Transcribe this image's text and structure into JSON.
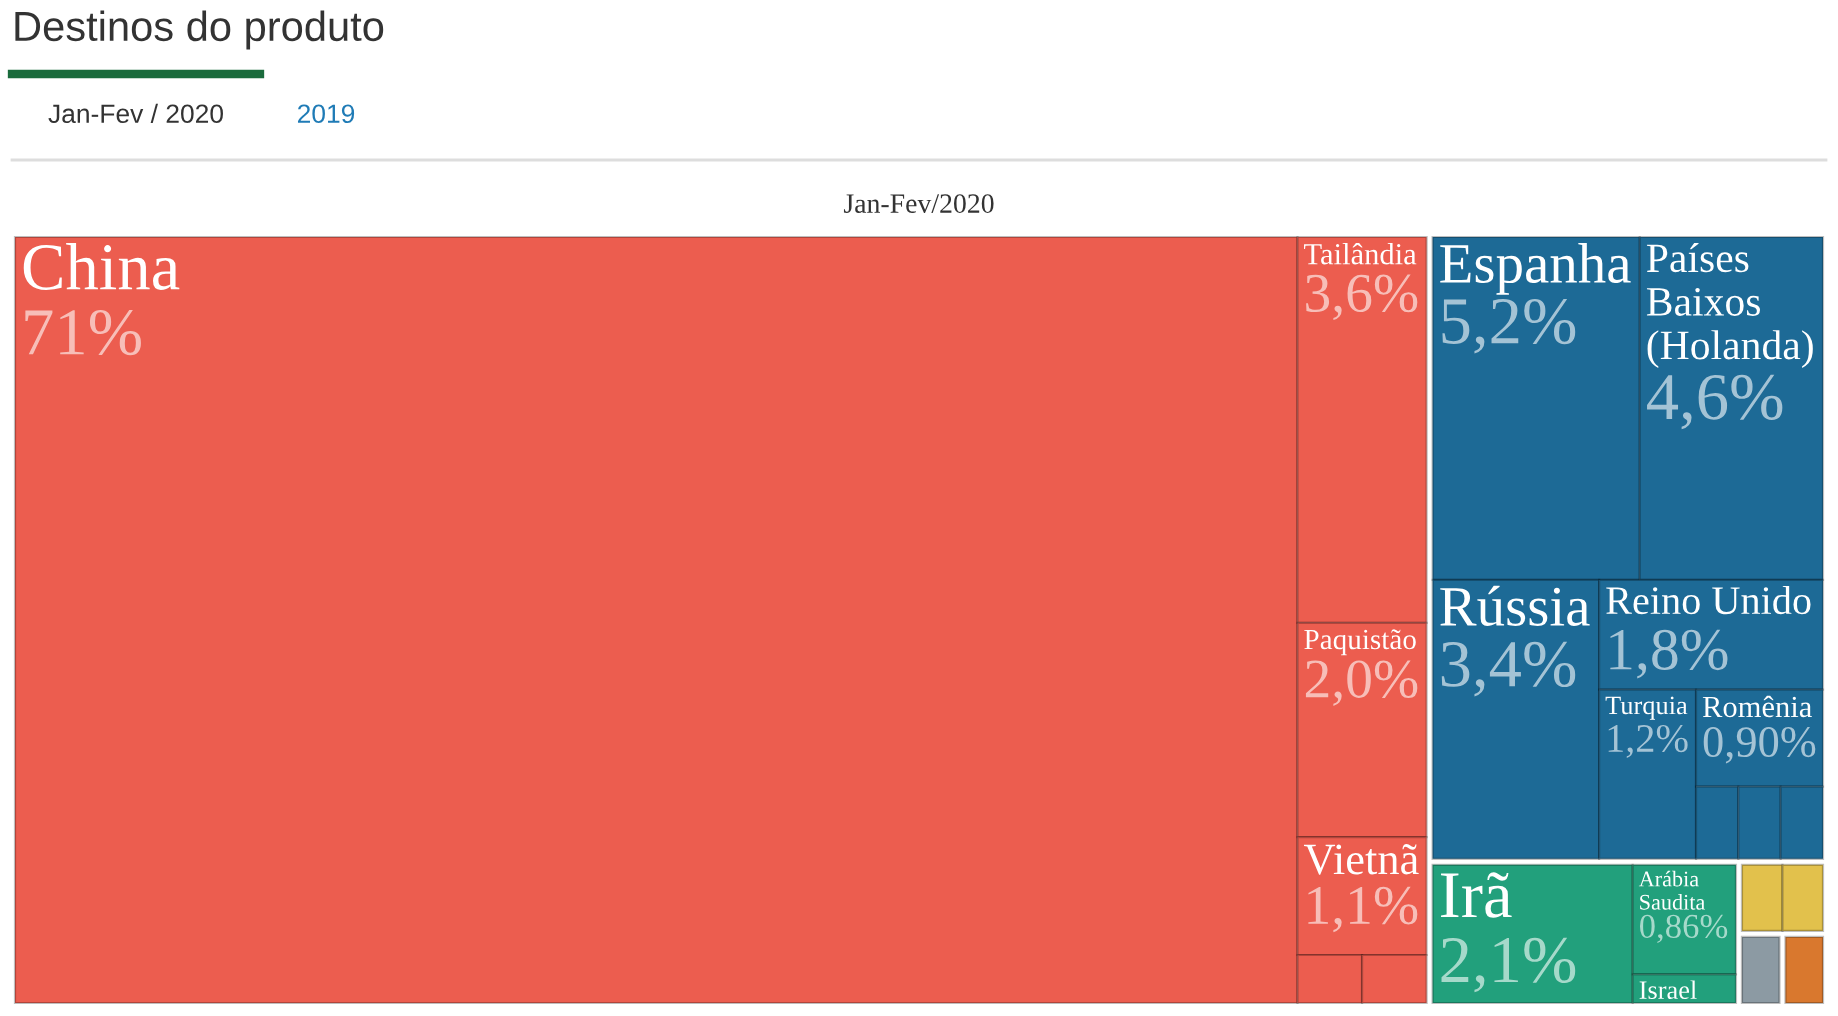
{
  "chart_data": {
    "type": "other",
    "title": "Destinos do produto",
    "subtitle": "Jan-Fev/2020",
    "annotations": [
      "Jan-Fev / 2020",
      "2019"
    ],
    "categories": [
      "China",
      "Tailândia",
      "Paquistão",
      "Vietnã",
      null,
      null,
      "Espanha",
      "Países Baixos (Holanda)",
      "Rússia",
      "Reino Unido",
      "Turquia",
      "Romênia",
      null,
      null,
      null,
      "Irã",
      "Arábia Saudita",
      "Israel",
      null,
      null,
      null,
      null
    ],
    "values": [
      71,
      3.6,
      2.0,
      1.1,
      null,
      null,
      5.2,
      4.6,
      3.4,
      1.8,
      1.2,
      0.9,
      null,
      null,
      null,
      2.1,
      0.86,
      null,
      null,
      null,
      null,
      null
    ],
    "value_labels": [
      "71%",
      "3,6%",
      "2,0%",
      "1,1%",
      null,
      null,
      "5,2%",
      "4,6%",
      "3,4%",
      "1,8%",
      "1,2%",
      "0,90%",
      null,
      null,
      null,
      "2,1%",
      "0,86%",
      null,
      null,
      null,
      null,
      null
    ],
    "colors": [
      "#ec5d4f",
      "#ec5d4f",
      "#ec5d4f",
      "#ec5d4f",
      "#ec5d4f",
      "#ec5d4f",
      "#1d6a96",
      "#1d6a96",
      "#1d6a96",
      "#1d6a96",
      "#1d6a96",
      "#1d6a96",
      "#1d6a96",
      "#1d6a96",
      "#1d6a96",
      "#22a07c",
      "#22a07c",
      "#22a07c",
      "#e2c14c",
      "#e2c14c",
      "#8c9aa3",
      "#d9782e"
    ]
  }
}
